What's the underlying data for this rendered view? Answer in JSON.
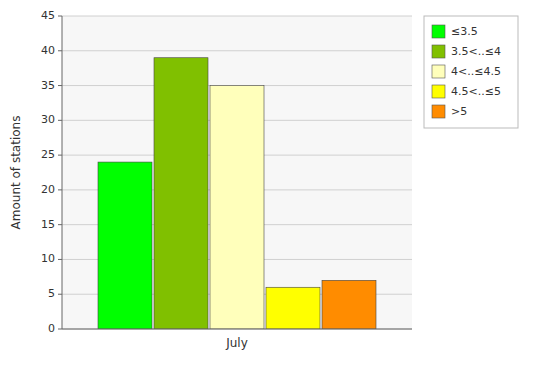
{
  "chart_data": {
    "type": "bar",
    "categories": [
      "July"
    ],
    "series": [
      {
        "name": "≤3.5",
        "color": "#00FF00",
        "values": [
          24
        ]
      },
      {
        "name": "3.5<..≤4",
        "color": "#80C000",
        "values": [
          39
        ]
      },
      {
        "name": "4<..≤4.5",
        "color": "#FFFFBB",
        "values": [
          35
        ]
      },
      {
        "name": "4.5<..≤5",
        "color": "#FFFF00",
        "values": [
          6
        ]
      },
      {
        "name": ">5",
        "color": "#FF8C00",
        "values": [
          7
        ]
      }
    ],
    "ylabel": "Amount of stations",
    "ylim": [
      0,
      45
    ],
    "yticks": [
      0,
      5,
      10,
      15,
      20,
      25,
      30,
      35,
      40,
      45
    ],
    "grid": true,
    "legend": "upper right"
  }
}
